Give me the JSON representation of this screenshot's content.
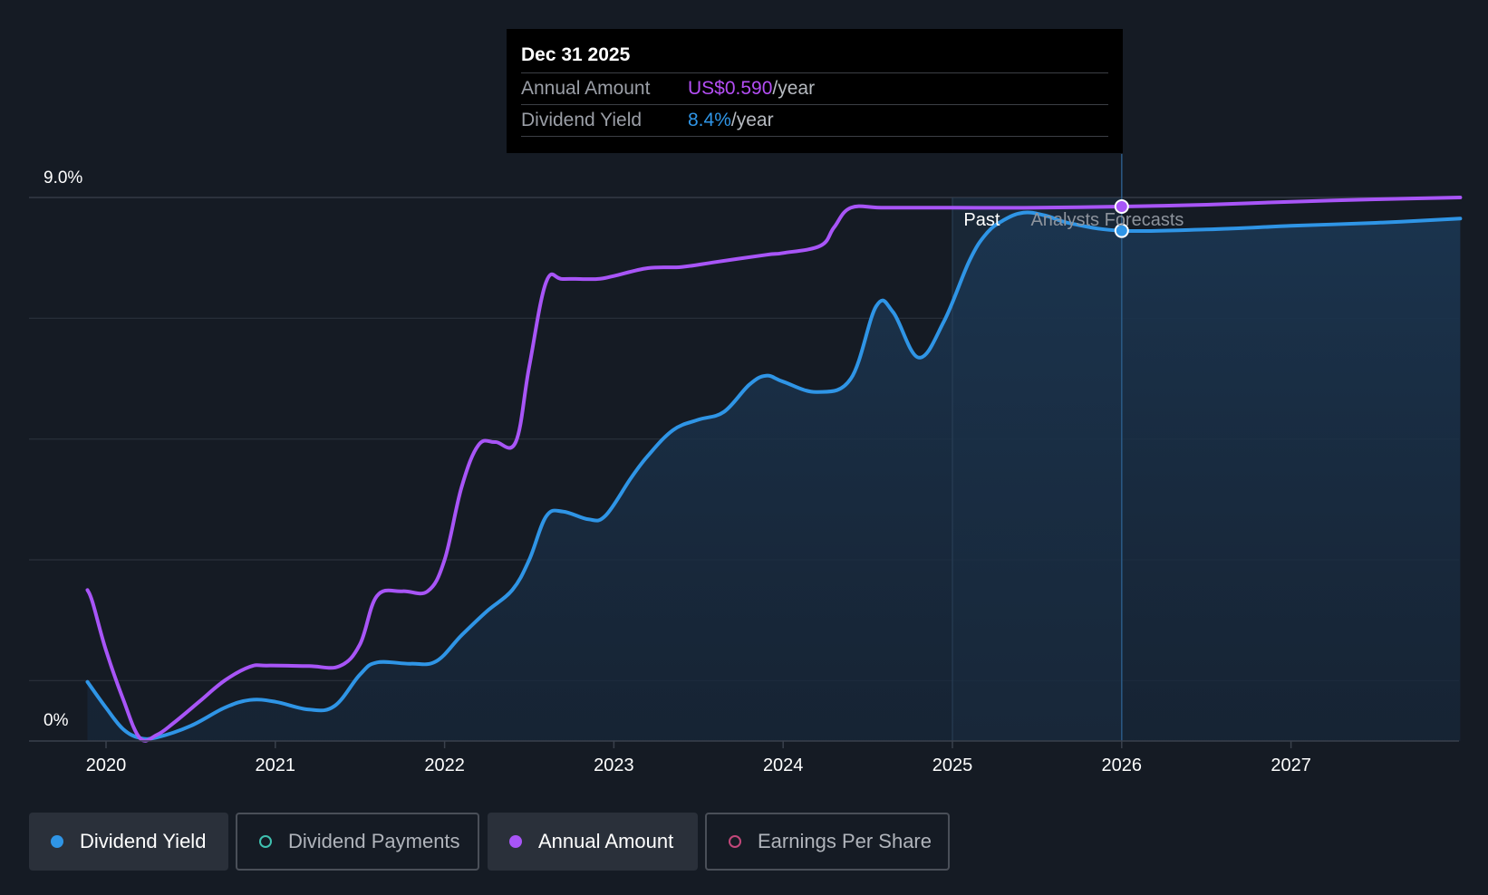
{
  "chart_data": {
    "type": "line",
    "y_axis": {
      "top_label": "9.0%",
      "bottom_label": "0%",
      "ylim": [
        0,
        9.0
      ],
      "unit": "%"
    },
    "x_axis": {
      "tick_labels": [
        "2020",
        "2021",
        "2022",
        "2023",
        "2024",
        "2025",
        "2026",
        "2027"
      ],
      "xlim": [
        2019.89,
        2028.0
      ]
    },
    "period_labels": {
      "past": "Past",
      "forecast": "Analysts Forecasts"
    },
    "series": [
      {
        "name": "Annual Amount",
        "color": "#a855f7",
        "x": [
          2019.89,
          2019.92,
          2020.0,
          2020.1,
          2020.2,
          2020.3,
          2020.4,
          2020.55,
          2020.7,
          2020.85,
          2020.95,
          2021.2,
          2021.38,
          2021.5,
          2021.6,
          2021.75,
          2021.9,
          2022.0,
          2022.1,
          2022.2,
          2022.3,
          2022.42,
          2022.5,
          2022.6,
          2022.7,
          2022.9,
          2023.0,
          2023.2,
          2023.4,
          2023.6,
          2023.9,
          2024.0,
          2024.22,
          2024.3,
          2024.4,
          2024.6,
          2025.0,
          2025.5,
          2026.0,
          2026.5,
          2027.0,
          2027.5,
          2028.0
        ],
        "values": [
          2.5,
          2.3,
          1.5,
          0.7,
          0.05,
          0.1,
          0.3,
          0.65,
          1.0,
          1.23,
          1.25,
          1.24,
          1.24,
          1.6,
          2.4,
          2.48,
          2.48,
          3.0,
          4.2,
          4.9,
          4.95,
          4.95,
          6.2,
          7.6,
          7.65,
          7.65,
          7.7,
          7.83,
          7.85,
          7.93,
          8.05,
          8.08,
          8.2,
          8.5,
          8.83,
          8.83,
          8.83,
          8.83,
          8.85,
          8.88,
          8.93,
          8.97,
          9.0
        ]
      },
      {
        "name": "Dividend Yield",
        "color": "#2f95e6",
        "x": [
          2019.89,
          2020.0,
          2020.1,
          2020.2,
          2020.3,
          2020.5,
          2020.7,
          2020.85,
          2021.0,
          2021.2,
          2021.35,
          2021.5,
          2021.6,
          2021.8,
          2021.95,
          2022.1,
          2022.25,
          2022.4,
          2022.5,
          2022.6,
          2022.7,
          2022.85,
          2022.95,
          2023.1,
          2023.2,
          2023.35,
          2023.5,
          2023.65,
          2023.8,
          2023.9,
          2024.0,
          2024.2,
          2024.4,
          2024.55,
          2024.65,
          2024.8,
          2024.95,
          2025.1,
          2025.2,
          2025.3,
          2025.42,
          2025.55,
          2025.7,
          2026.0,
          2026.5,
          2027.0,
          2027.5,
          2028.0
        ],
        "values": [
          0.98,
          0.55,
          0.2,
          0.05,
          0.06,
          0.25,
          0.55,
          0.68,
          0.65,
          0.52,
          0.58,
          1.1,
          1.3,
          1.28,
          1.32,
          1.75,
          2.15,
          2.5,
          3.0,
          3.72,
          3.8,
          3.67,
          3.73,
          4.35,
          4.72,
          5.15,
          5.32,
          5.45,
          5.9,
          6.05,
          5.95,
          5.78,
          6.0,
          7.2,
          7.1,
          6.35,
          6.95,
          7.95,
          8.4,
          8.62,
          8.75,
          8.7,
          8.57,
          8.45,
          8.47,
          8.53,
          8.58,
          8.65
        ]
      }
    ],
    "hover_x": 2026.0,
    "past_band": [
      2025.0,
      2025.42
    ]
  },
  "tooltip": {
    "date": "Dec 31 2025",
    "rows": [
      {
        "label": "Annual Amount",
        "value": "US$0.590",
        "unit": "/year",
        "color": "#b44ef5"
      },
      {
        "label": "Dividend Yield",
        "value": "8.4%",
        "unit": "/year",
        "color": "#2f95e6"
      }
    ]
  },
  "legend": [
    {
      "label": "Dividend Yield",
      "active": true,
      "filled": true,
      "color": "#2f95e6"
    },
    {
      "label": "Dividend Payments",
      "active": false,
      "filled": false,
      "color": "#3fc1b0"
    },
    {
      "label": "Annual Amount",
      "active": true,
      "filled": true,
      "color": "#a855f7"
    },
    {
      "label": "Earnings Per Share",
      "active": false,
      "filled": false,
      "color": "#c2477a"
    }
  ]
}
